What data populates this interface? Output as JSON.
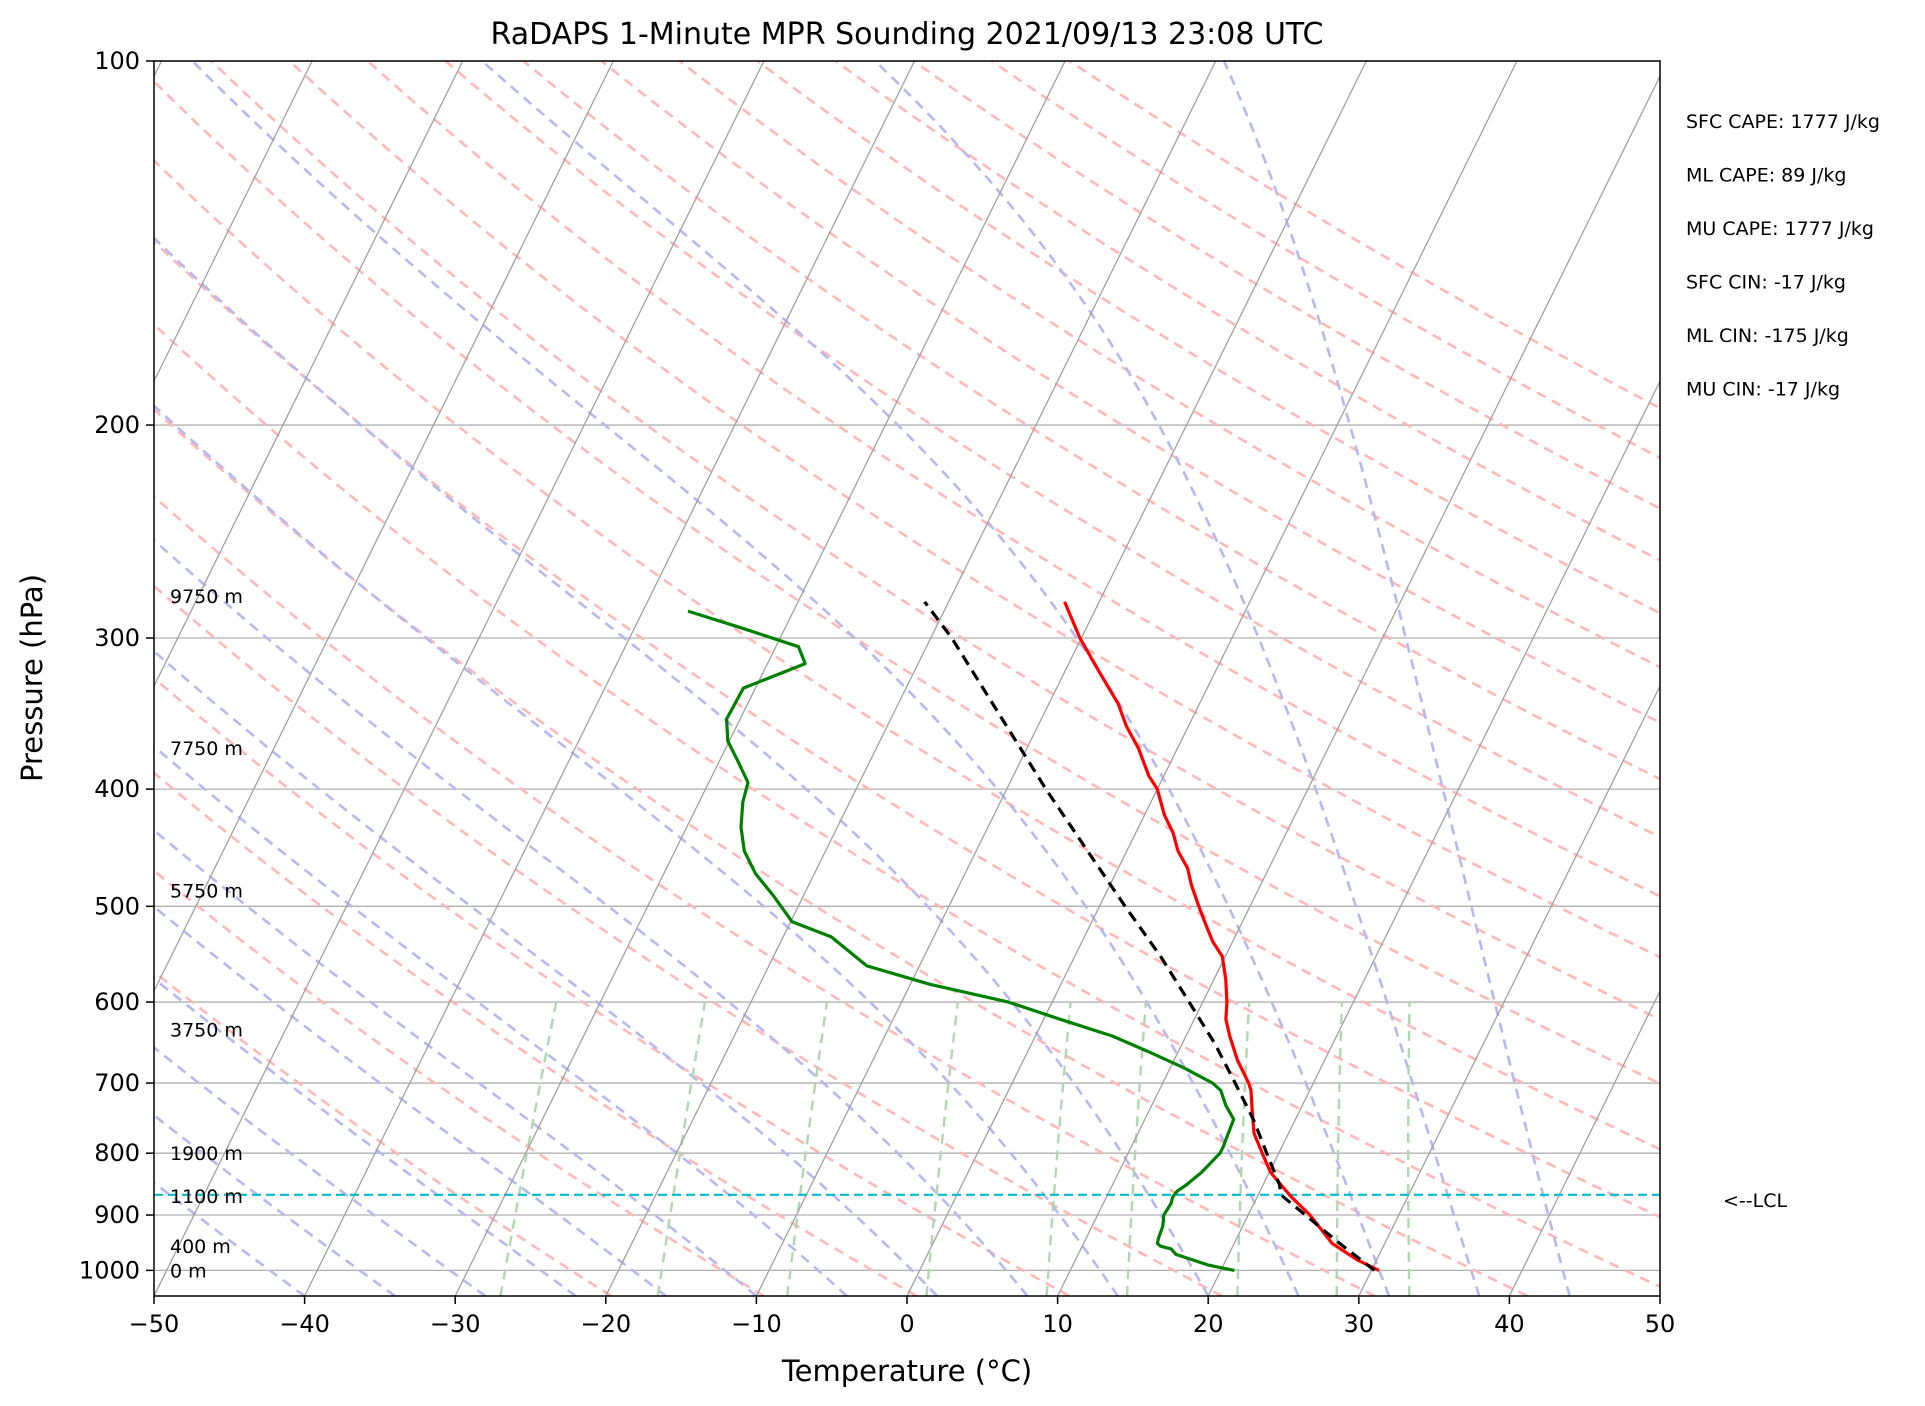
{
  "chart_data": {
    "type": "skew-t",
    "title": "RaDAPS 1-Minute MPR Sounding 2021/09/13 23:08 UTC",
    "xlabel": "Temperature (°C)",
    "ylabel": "Pressure (hPa)",
    "xlim": [
      -50,
      50
    ],
    "ylim": [
      1050,
      100
    ],
    "y_scale": "log",
    "grid": true,
    "x_ticks": [
      {
        "value": -50,
        "label": "−50"
      },
      {
        "value": -40,
        "label": "−40"
      },
      {
        "value": -30,
        "label": "−30"
      },
      {
        "value": -20,
        "label": "−20"
      },
      {
        "value": -10,
        "label": "−10"
      },
      {
        "value": 0,
        "label": "0"
      },
      {
        "value": 10,
        "label": "10"
      },
      {
        "value": 20,
        "label": "20"
      },
      {
        "value": 30,
        "label": "30"
      },
      {
        "value": 40,
        "label": "40"
      },
      {
        "value": 50,
        "label": "50"
      }
    ],
    "y_ticks": [
      {
        "value": 100,
        "label": "100"
      },
      {
        "value": 200,
        "label": "200"
      },
      {
        "value": 300,
        "label": "300"
      },
      {
        "value": 400,
        "label": "400"
      },
      {
        "value": 500,
        "label": "500"
      },
      {
        "value": 600,
        "label": "600"
      },
      {
        "value": 700,
        "label": "700"
      },
      {
        "value": 800,
        "label": "800"
      },
      {
        "value": 900,
        "label": "900"
      },
      {
        "value": 1000,
        "label": "1000"
      }
    ],
    "series": [
      {
        "kind": "temperature",
        "color": "#ff0000",
        "style": "solid",
        "points": [
          [
            1000,
            30.5
          ],
          [
            980,
            28.7
          ],
          [
            950,
            26.5
          ],
          [
            900,
            24.1
          ],
          [
            870,
            22.3
          ],
          [
            850,
            21.2
          ],
          [
            830,
            20.1
          ],
          [
            800,
            18.9
          ],
          [
            770,
            17.7
          ],
          [
            740,
            16.9
          ],
          [
            710,
            16.1
          ],
          [
            700,
            15.7
          ],
          [
            670,
            14.2
          ],
          [
            640,
            12.9
          ],
          [
            620,
            12.1
          ],
          [
            600,
            11.6
          ],
          [
            575,
            10.8
          ],
          [
            550,
            9.8
          ],
          [
            535,
            8.7
          ],
          [
            520,
            7.8
          ],
          [
            500,
            6.6
          ],
          [
            480,
            5.4
          ],
          [
            465,
            4.6
          ],
          [
            450,
            3.4
          ],
          [
            435,
            2.5
          ],
          [
            420,
            1.3
          ],
          [
            400,
            0.0
          ],
          [
            390,
            -1.0
          ],
          [
            370,
            -2.6
          ],
          [
            355,
            -4.1
          ],
          [
            340,
            -5.4
          ],
          [
            320,
            -7.7
          ],
          [
            300,
            -10.1
          ],
          [
            280,
            -12.3
          ]
        ]
      },
      {
        "kind": "dewpoint",
        "color": "#008000",
        "style": "solid",
        "points": [
          [
            1000,
            20.9
          ],
          [
            995,
            19.9
          ],
          [
            990,
            19.0
          ],
          [
            970,
            16.5
          ],
          [
            960,
            16.0
          ],
          [
            955,
            15.2
          ],
          [
            950,
            14.9
          ],
          [
            940,
            14.8
          ],
          [
            920,
            14.7
          ],
          [
            900,
            14.4
          ],
          [
            880,
            14.5
          ],
          [
            870,
            14.4
          ],
          [
            860,
            14.5
          ],
          [
            850,
            14.9
          ],
          [
            830,
            15.5
          ],
          [
            815,
            15.8
          ],
          [
            800,
            16.1
          ],
          [
            790,
            16.1
          ],
          [
            770,
            16.0
          ],
          [
            750,
            15.9
          ],
          [
            730,
            14.9
          ],
          [
            710,
            14.1
          ],
          [
            700,
            13.3
          ],
          [
            680,
            10.9
          ],
          [
            660,
            8.1
          ],
          [
            640,
            5.1
          ],
          [
            620,
            1.1
          ],
          [
            600,
            -2.9
          ],
          [
            580,
            -8.7
          ],
          [
            560,
            -13.5
          ],
          [
            530,
            -16.8
          ],
          [
            515,
            -19.9
          ],
          [
            490,
            -22.0
          ],
          [
            470,
            -23.9
          ],
          [
            450,
            -25.4
          ],
          [
            430,
            -26.4
          ],
          [
            410,
            -27.1
          ],
          [
            395,
            -27.4
          ],
          [
            380,
            -28.7
          ],
          [
            365,
            -30.1
          ],
          [
            350,
            -30.9
          ],
          [
            330,
            -30.8
          ],
          [
            315,
            -27.5
          ],
          [
            305,
            -28.5
          ],
          [
            295,
            -32.6
          ],
          [
            285,
            -37.0
          ]
        ]
      },
      {
        "kind": "parcel",
        "color": "#000000",
        "style": "dashed",
        "points": [
          [
            1000,
            30.2
          ],
          [
            950,
            27.0
          ],
          [
            900,
            23.8
          ],
          [
            866,
            21.5
          ],
          [
            850,
            21.1
          ],
          [
            800,
            19.2
          ],
          [
            750,
            17.2
          ],
          [
            700,
            14.8
          ],
          [
            650,
            12.2
          ],
          [
            600,
            9.1
          ],
          [
            550,
            5.7
          ],
          [
            500,
            1.7
          ],
          [
            450,
            -2.6
          ],
          [
            400,
            -7.4
          ],
          [
            350,
            -12.6
          ],
          [
            300,
            -18.6
          ],
          [
            280,
            -21.6
          ]
        ]
      }
    ],
    "lcl": {
      "pressure": 866,
      "label": "<--LCL",
      "color": "#00bcc8"
    },
    "height_labels": [
      {
        "pressure": 1000,
        "label": "0 m"
      },
      {
        "pressure": 955,
        "label": "400 m"
      },
      {
        "pressure": 868,
        "label": "1100 m"
      },
      {
        "pressure": 800,
        "label": "1900 m"
      },
      {
        "pressure": 632,
        "label": "3750 m"
      },
      {
        "pressure": 485,
        "label": "5750 m"
      },
      {
        "pressure": 370,
        "label": "7750 m"
      },
      {
        "pressure": 277,
        "label": "9750 m"
      }
    ],
    "stats": [
      "SFC CAPE: 1777 J/kg",
      "ML CAPE: 89 J/kg",
      "MU CAPE: 1777 J/kg",
      "SFC CIN: -17 J/kg",
      "ML CIN: -175 J/kg",
      "MU CIN: -17 J/kg"
    ],
    "background_lines": {
      "isotherm_color": "#a0a0a0",
      "dry_adiabat_color": "#ffb8b8",
      "moist_adiabat_color": "#b8b8f0",
      "mixing_ratio_color": "#b0d8b0",
      "pressure_grid_color": "#b0b0b0"
    }
  }
}
